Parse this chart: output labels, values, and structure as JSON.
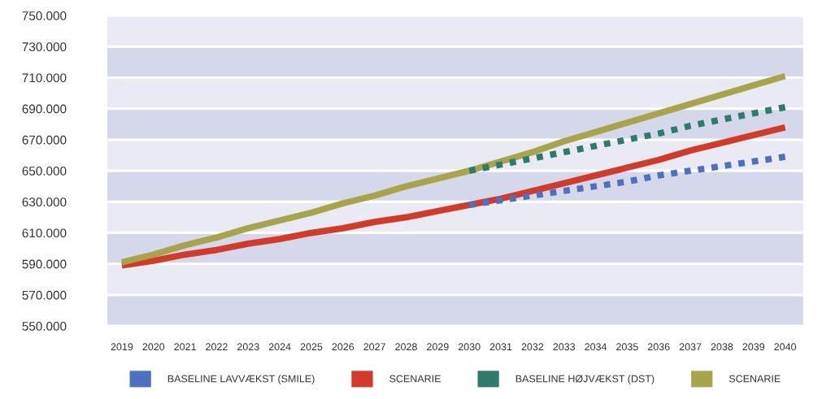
{
  "chart_data": {
    "type": "line",
    "categories": [
      "2019",
      "2020",
      "2021",
      "2022",
      "2023",
      "2024",
      "2025",
      "2026",
      "2027",
      "2028",
      "2029",
      "2030",
      "2031",
      "2032",
      "2033",
      "2034",
      "2035",
      "2036",
      "2037",
      "2038",
      "2039",
      "2040"
    ],
    "series": [
      {
        "name": "BASELINE LAVVÆKST (SMILE)",
        "color": "#4f6fbf",
        "line_style": "dotted",
        "values": [
          null,
          null,
          null,
          null,
          null,
          null,
          null,
          null,
          null,
          null,
          null,
          628000,
          631000,
          634000,
          637000,
          640000,
          643000,
          647000,
          650000,
          653000,
          656000,
          659000
        ]
      },
      {
        "name": "SCENARIE",
        "color": "#d23a2a",
        "line_style": "solid",
        "values": [
          589000,
          592000,
          596000,
          599000,
          603000,
          606000,
          610000,
          613000,
          617000,
          620000,
          624000,
          628000,
          632000,
          637000,
          642000,
          647000,
          652000,
          657000,
          663000,
          668000,
          673000,
          678000
        ]
      },
      {
        "name": "BASELINE HØJVÆKST (DST)",
        "color": "#2f7a6a",
        "line_style": "dotted",
        "values": [
          null,
          null,
          null,
          null,
          null,
          null,
          null,
          null,
          null,
          null,
          null,
          650000,
          654000,
          658000,
          662000,
          666000,
          670000,
          674000,
          679000,
          683000,
          687000,
          691000
        ]
      },
      {
        "name": "SCENARIE",
        "color": "#a8a44c",
        "line_style": "solid",
        "values": [
          591000,
          596000,
          602000,
          607000,
          613000,
          618000,
          623000,
          629000,
          634000,
          640000,
          645000,
          650000,
          656000,
          662000,
          669000,
          675000,
          681000,
          687000,
          693000,
          699000,
          705000,
          711000
        ]
      }
    ],
    "ylim": [
      550000,
      750000
    ],
    "yticks": [
      {
        "value": 550000,
        "label": "550.000"
      },
      {
        "value": 570000,
        "label": "570.000"
      },
      {
        "value": 590000,
        "label": "590.000"
      },
      {
        "value": 610000,
        "label": "610.000"
      },
      {
        "value": 630000,
        "label": "630.000"
      },
      {
        "value": 650000,
        "label": "650.000"
      },
      {
        "value": 670000,
        "label": "670.000"
      },
      {
        "value": 690000,
        "label": "690.000"
      },
      {
        "value": 710000,
        "label": "710.000"
      },
      {
        "value": 730000,
        "label": "730.000"
      },
      {
        "value": 750000,
        "label": "750.000"
      }
    ],
    "bands": [
      {
        "axis": "y",
        "from": 550000,
        "to": 570000,
        "color": "#d4d8ea"
      },
      {
        "axis": "y",
        "from": 590000,
        "to": 610000,
        "color": "#d4d8ea"
      },
      {
        "axis": "y",
        "from": 630000,
        "to": 650000,
        "color": "#d4d8ea"
      },
      {
        "axis": "y",
        "from": 670000,
        "to": 690000,
        "color": "#d4d8ea"
      },
      {
        "axis": "y",
        "from": 710000,
        "to": 730000,
        "color": "#d4d8ea"
      }
    ],
    "grid": "y",
    "legend": "bottom"
  }
}
